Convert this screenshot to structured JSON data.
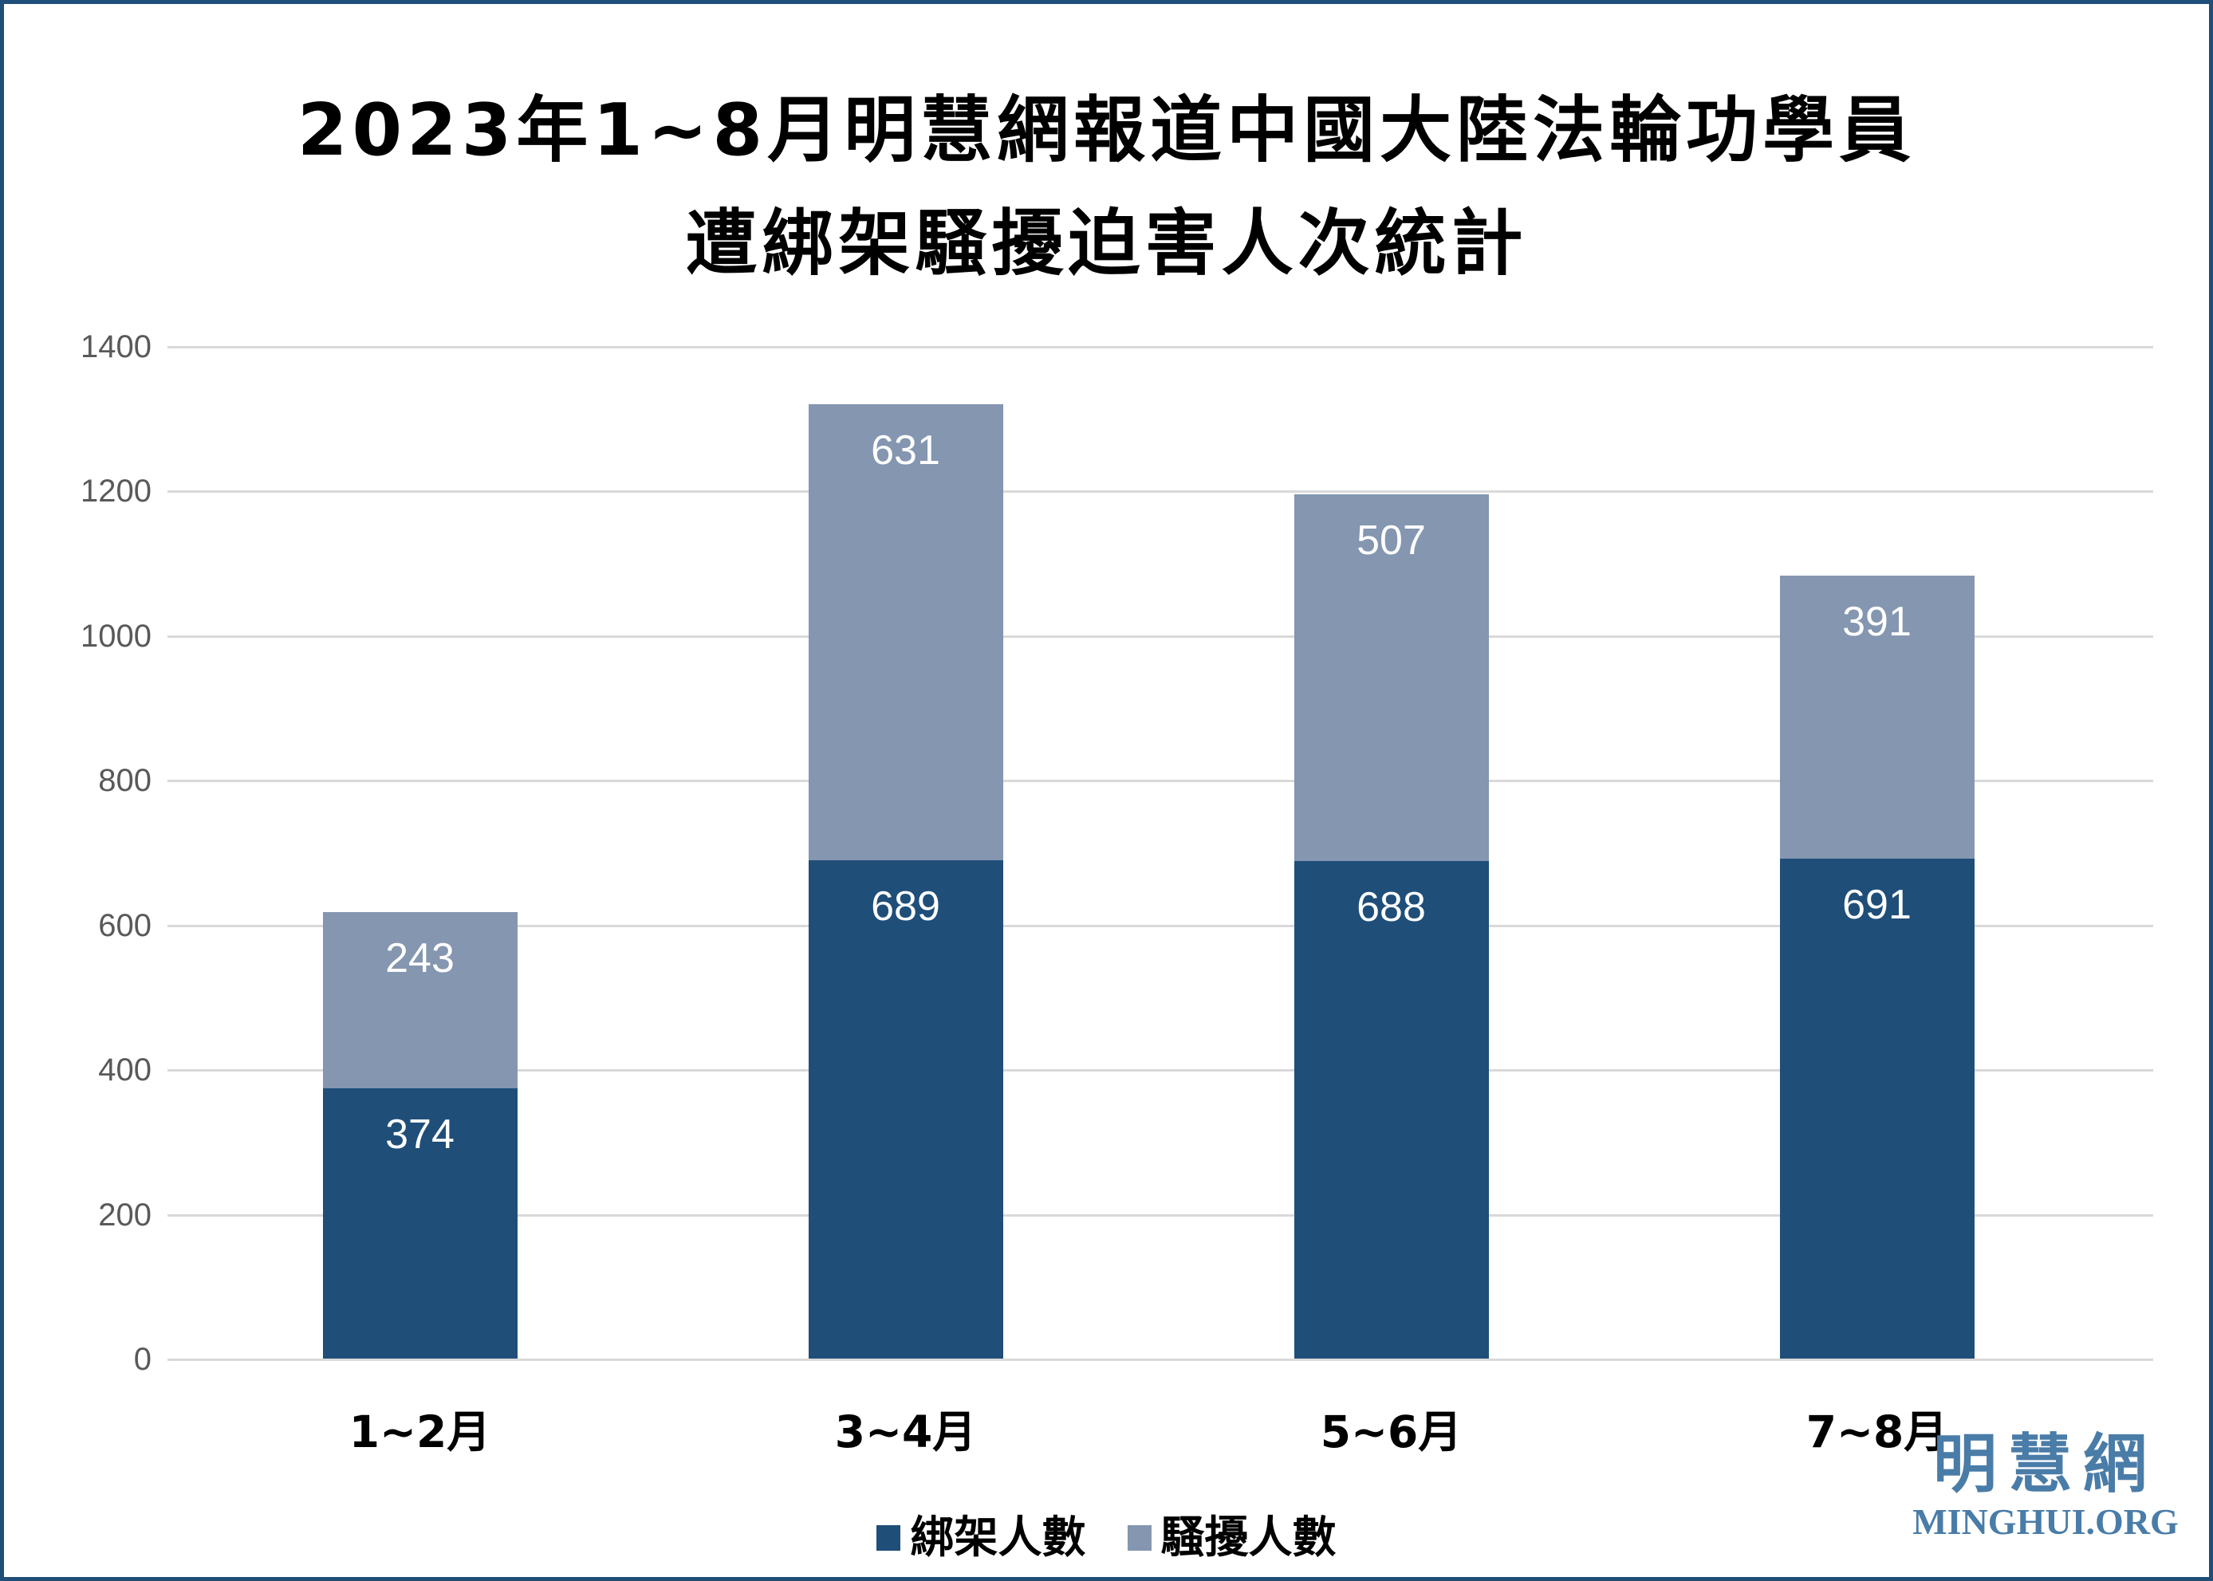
{
  "title": {
    "line1": "2023年1~8月明慧網報道中國大陸法輪功學員",
    "line2": "遭綁架騷擾迫害人次統計"
  },
  "chart_data": {
    "type": "bar",
    "stacked": true,
    "title": "2023年1~8月明慧網報道中國大陸法輪功學員遭綁架騷擾迫害人次統計",
    "categories": [
      "1~2月",
      "3~4月",
      "5~6月",
      "7~8月"
    ],
    "series": [
      {
        "name": "綁架人數",
        "color": "#1F4E79",
        "values": [
          374,
          689,
          688,
          691
        ]
      },
      {
        "name": "騷擾人數",
        "color": "#8496B0",
        "values": [
          243,
          631,
          507,
          391
        ]
      }
    ],
    "ylim": [
      0,
      1400
    ],
    "yticks": [
      0,
      200,
      400,
      600,
      800,
      1000,
      1200,
      1400
    ],
    "grid": true,
    "legend_position": "bottom",
    "value_labels": "inside-top",
    "colors": {
      "grid": "#D9D9D9",
      "tick_label": "#595959",
      "value_label": "#FFFFFF",
      "frame_border": "#1F4E79"
    }
  },
  "logo": {
    "cjk": "明慧網",
    "latin": "MINGHUI.ORG",
    "color": "#4A7CA8"
  }
}
